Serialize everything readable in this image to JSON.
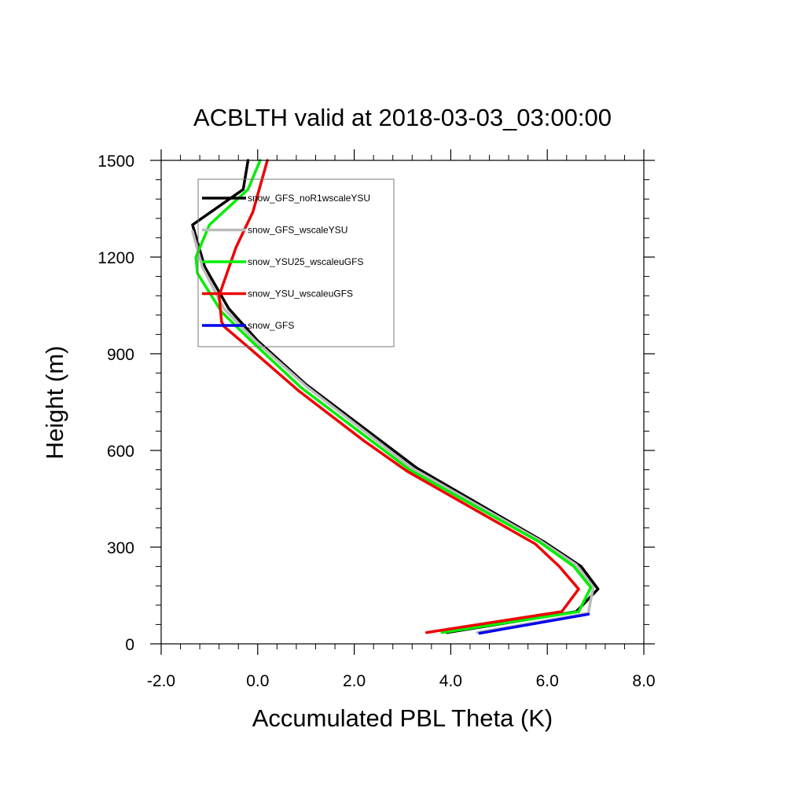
{
  "chart_data": {
    "type": "line",
    "title": "ACBLTH valid at 2018-03-03_03:00:00",
    "xlabel": "Accumulated PBL Theta (K)",
    "ylabel": "Height (m)",
    "xlim": [
      -2.0,
      8.0
    ],
    "ylim": [
      0,
      1500
    ],
    "xticks": [
      -2.0,
      0.0,
      2.0,
      4.0,
      6.0,
      8.0
    ],
    "xtick_labels": [
      "-2.0",
      "0.0",
      "2.0",
      "4.0",
      "6.0",
      "8.0"
    ],
    "yticks": [
      0,
      300,
      600,
      900,
      1200,
      1500
    ],
    "ytick_labels": [
      "0",
      "300",
      "600",
      "900",
      "1200",
      "1500"
    ],
    "legend": "top-left",
    "grid": false,
    "series": [
      {
        "name": "snow_GFS_noR1wscaleYSU",
        "color": "#000000",
        "x": [
          3.92,
          6.6,
          7.05,
          6.7,
          5.95,
          3.3,
          1.0,
          0.0,
          -0.6,
          -1.1,
          -1.35,
          -0.3,
          -0.2
        ],
        "y": [
          35,
          100,
          170,
          240,
          315,
          545,
          805,
          940,
          1040,
          1170,
          1300,
          1410,
          1500
        ]
      },
      {
        "name": "snow_GFS_wscaleYSU",
        "color": "#bbbbbb",
        "x": [
          4.55,
          6.85,
          6.95,
          6.6,
          5.85,
          3.2,
          1.0,
          -0.05,
          -0.7,
          -1.15,
          -1.35
        ],
        "y": [
          35,
          95,
          175,
          245,
          320,
          545,
          800,
          940,
          1040,
          1170,
          1280
        ]
      },
      {
        "name": "snow_YSU25_wscaleuGFS",
        "color": "#00ee00",
        "x": [
          3.82,
          6.65,
          6.9,
          6.55,
          5.85,
          3.15,
          0.9,
          -0.1,
          -0.75,
          -1.25,
          -1.28,
          -1.0,
          -0.2,
          0.05
        ],
        "y": [
          35,
          100,
          175,
          240,
          315,
          540,
          795,
          935,
          1030,
          1150,
          1200,
          1300,
          1410,
          1500
        ]
      },
      {
        "name": "snow_YSU_wscaleuGFS",
        "color": "#ee0000",
        "x": [
          3.5,
          6.3,
          6.65,
          6.25,
          5.75,
          3.1,
          2.2,
          0.85,
          -0.15,
          -0.7,
          -0.75,
          -0.8,
          -0.45,
          -0.1,
          0.2
        ],
        "y": [
          35,
          100,
          170,
          240,
          310,
          535,
          630,
          785,
          915,
          985,
          1000,
          1080,
          1230,
          1340,
          1500
        ]
      },
      {
        "name": "snow_GFS",
        "color": "#0000ee",
        "x": [
          4.6,
          6.85
        ],
        "y": [
          33,
          92
        ]
      }
    ]
  }
}
